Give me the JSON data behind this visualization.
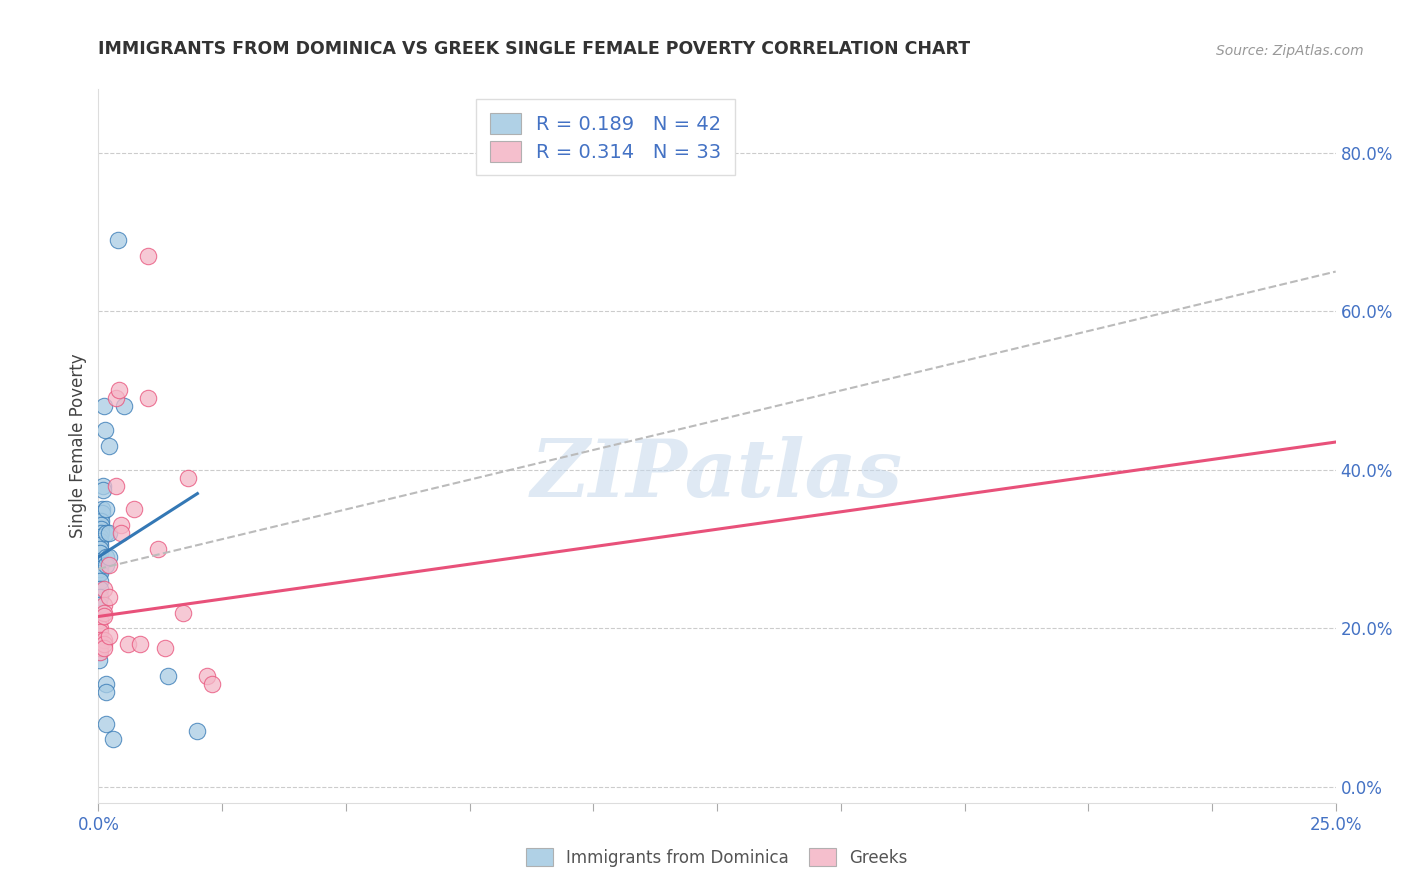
{
  "title": "IMMIGRANTS FROM DOMINICA VS GREEK SINGLE FEMALE POVERTY CORRELATION CHART",
  "source": "Source: ZipAtlas.com",
  "ylabel": "Single Female Poverty",
  "legend_label1": "Immigrants from Dominica",
  "legend_label2": "Greeks",
  "R1": 0.189,
  "N1": 42,
  "R2": 0.314,
  "N2": 33,
  "blue_color": "#a8cce4",
  "pink_color": "#f4b8c8",
  "blue_line_color": "#3478b5",
  "pink_line_color": "#e8517a",
  "dashed_line_color": "#bbbbbb",
  "watermark": "ZIPatlas",
  "blue_dots": [
    [
      0.0002,
      0.27
    ],
    [
      0.0012,
      0.48
    ],
    [
      0.0014,
      0.45
    ],
    [
      0.001,
      0.38
    ],
    [
      0.001,
      0.375
    ],
    [
      0.0008,
      0.35
    ],
    [
      0.0008,
      0.345
    ],
    [
      0.0006,
      0.335
    ],
    [
      0.0006,
      0.33
    ],
    [
      0.0005,
      0.325
    ],
    [
      0.0005,
      0.32
    ],
    [
      0.0004,
      0.315
    ],
    [
      0.0004,
      0.31
    ],
    [
      0.0004,
      0.305
    ],
    [
      0.0004,
      0.3
    ],
    [
      0.0003,
      0.295
    ],
    [
      0.0003,
      0.285
    ],
    [
      0.0003,
      0.28
    ],
    [
      0.0003,
      0.275
    ],
    [
      0.0003,
      0.27
    ],
    [
      0.0003,
      0.26
    ],
    [
      0.0003,
      0.25
    ],
    [
      0.0003,
      0.24
    ],
    [
      0.0002,
      0.23
    ],
    [
      0.0002,
      0.18
    ],
    [
      0.0002,
      0.17
    ],
    [
      0.0002,
      0.16
    ],
    [
      0.0015,
      0.35
    ],
    [
      0.0015,
      0.32
    ],
    [
      0.0015,
      0.29
    ],
    [
      0.0015,
      0.28
    ],
    [
      0.0015,
      0.13
    ],
    [
      0.0015,
      0.12
    ],
    [
      0.0015,
      0.08
    ],
    [
      0.0022,
      0.43
    ],
    [
      0.0022,
      0.32
    ],
    [
      0.0022,
      0.29
    ],
    [
      0.003,
      0.06
    ],
    [
      0.004,
      0.69
    ],
    [
      0.0052,
      0.48
    ],
    [
      0.014,
      0.14
    ],
    [
      0.02,
      0.07
    ]
  ],
  "pink_dots": [
    [
      0.0003,
      0.21
    ],
    [
      0.0003,
      0.2
    ],
    [
      0.0003,
      0.195
    ],
    [
      0.0003,
      0.185
    ],
    [
      0.0003,
      0.18
    ],
    [
      0.0003,
      0.175
    ],
    [
      0.0003,
      0.17
    ],
    [
      0.0012,
      0.25
    ],
    [
      0.0012,
      0.23
    ],
    [
      0.0012,
      0.22
    ],
    [
      0.0012,
      0.215
    ],
    [
      0.0012,
      0.185
    ],
    [
      0.0012,
      0.18
    ],
    [
      0.0012,
      0.175
    ],
    [
      0.0022,
      0.28
    ],
    [
      0.0022,
      0.24
    ],
    [
      0.0022,
      0.19
    ],
    [
      0.0035,
      0.49
    ],
    [
      0.0035,
      0.38
    ],
    [
      0.0042,
      0.5
    ],
    [
      0.0045,
      0.33
    ],
    [
      0.0045,
      0.32
    ],
    [
      0.006,
      0.18
    ],
    [
      0.0072,
      0.35
    ],
    [
      0.0085,
      0.18
    ],
    [
      0.01,
      0.67
    ],
    [
      0.01,
      0.49
    ],
    [
      0.012,
      0.3
    ],
    [
      0.0135,
      0.175
    ],
    [
      0.017,
      0.22
    ],
    [
      0.018,
      0.39
    ],
    [
      0.022,
      0.14
    ],
    [
      0.023,
      0.13
    ]
  ],
  "xlim": [
    0.0,
    0.25
  ],
  "ylim": [
    -0.02,
    0.88
  ],
  "blue_trend_x": [
    0.0,
    0.02
  ],
  "blue_trend_y": [
    0.29,
    0.37
  ],
  "pink_trend_x": [
    0.0,
    0.25
  ],
  "pink_trend_y": [
    0.215,
    0.435
  ],
  "dashed_trend_x": [
    0.0,
    0.25
  ],
  "dashed_trend_y": [
    0.275,
    0.65
  ],
  "xtick_positions": [
    0.0,
    0.025,
    0.05,
    0.075,
    0.1,
    0.125,
    0.15,
    0.175,
    0.2,
    0.225,
    0.25
  ],
  "right_yticks": [
    0.0,
    0.2,
    0.4,
    0.6,
    0.8
  ],
  "right_yticklabels": [
    "0.0%",
    "20.0%",
    "40.0%",
    "60.0%",
    "80.0%"
  ]
}
